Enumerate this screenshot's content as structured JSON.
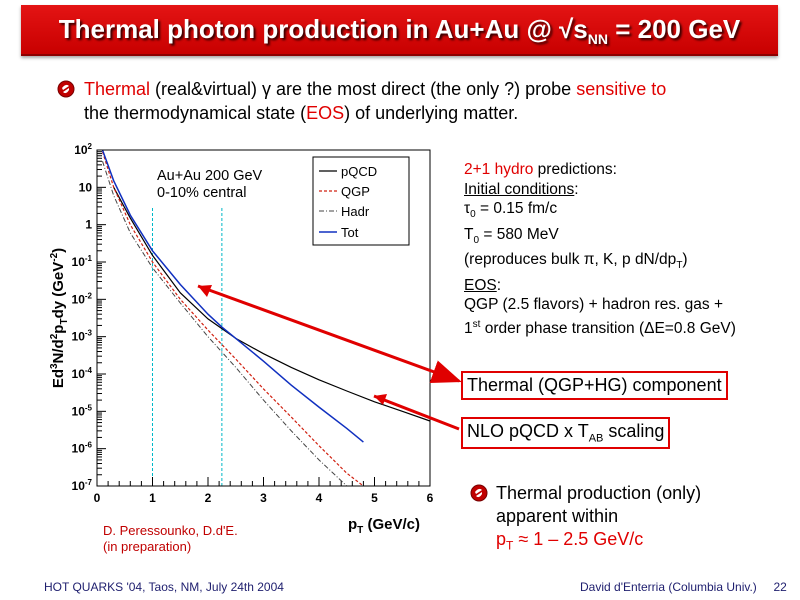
{
  "slide": {
    "title_main": "Thermal photon production in Au+Au @ √s",
    "title_sub": "NN",
    "title_end": " = 200 GeV",
    "intro_thermal": "Thermal",
    "intro_part1": " (real&virtual) γ are the most direct (the only ?) probe ",
    "intro_sensitive": "sensitive to",
    "intro_part2": "the thermodynamical state (",
    "intro_eos": "EOS",
    "intro_part3": ") of underlying matter.",
    "hydro_head_red": "2+1 hydro",
    "hydro_head_rest": " predictions:",
    "init_label": "Initial conditions",
    "tau_sym": "τ",
    "tau_sub": "0",
    "tau_val": " = 0.15 fm/c",
    "t_sym": "T",
    "t_sub": "0",
    "t_val": " = 580 MeV",
    "repro_text": "(reproduces bulk π, K, p dN/dp",
    "repro_sub": "T",
    "repro_end": ")",
    "eos_label": "EOS",
    "eos_line1": "QGP (2.5 flavors) + hadron res. gas +",
    "eos_line2a": "1",
    "eos_line2sup": "st",
    "eos_line2b": " order phase transition (ΔE=0.8 GeV)",
    "callout1": "Thermal (QGP+HG) component",
    "callout2_a": "NLO pQCD x T",
    "callout2_sub": "AB",
    "callout2_b": " scaling",
    "note_line1": "Thermal production (only)",
    "note_line2": "apparent within",
    "note_p": "p",
    "note_sub": "T",
    "note_rest": " ≈ 1 – 2.5 GeV/c",
    "credit_line1": "D. Peressounko, D.d'E.",
    "credit_line2": "(in preparation)",
    "footer_left": "HOT QUARKS '04, Taos, NM, July 24th 2004",
    "footer_author": "David d'Enterria (Columbia Univ.)",
    "footer_page": "22"
  },
  "colors": {
    "title_red": "#d40000",
    "accent_red": "#e00000",
    "tot_blue": "#1030c0",
    "qgp_red": "#d02010",
    "vline_cyan": "#00b8c8"
  },
  "chart_data": {
    "type": "line",
    "log_y": true,
    "xlim": [
      0,
      6
    ],
    "ylim": [
      1e-07,
      100
    ],
    "x_ticks": [
      "0",
      "1",
      "2",
      "3",
      "4",
      "5",
      "6"
    ],
    "y_ticks": [
      "10-7",
      "10-6",
      "10-5",
      "10-4",
      "10-3",
      "10-2",
      "10-1",
      "1",
      "10",
      "102"
    ],
    "xlabel": "pT (GeV/c)",
    "ylabel": "Ed3N/d2pTdy (GeV-2)",
    "annotation_line1": "Au+Au 200 GeV",
    "annotation_line2": "0-10% central",
    "vlines": [
      1.0,
      2.25
    ],
    "legend": [
      "pQCD",
      "QGP",
      "Hadr",
      "Tot"
    ],
    "series": [
      {
        "name": "pQCD",
        "x": [
          0.3,
          0.6,
          1.0,
          1.5,
          2.0,
          2.5,
          3.0,
          3.5,
          4.0,
          4.5,
          5.0,
          5.5,
          6.0
        ],
        "y": [
          10,
          1.5,
          0.15,
          0.015,
          0.003,
          0.0009,
          0.00035,
          0.00015,
          7e-05,
          3.5e-05,
          1.8e-05,
          1e-05,
          5.5e-06
        ]
      },
      {
        "name": "QGP",
        "x": [
          0.1,
          0.3,
          0.6,
          1.0,
          1.5,
          2.0,
          2.5,
          3.0,
          3.5,
          4.0,
          4.5,
          4.8
        ],
        "y": [
          90,
          10,
          1.0,
          0.1,
          0.01,
          0.0015,
          0.00025,
          4e-05,
          7e-06,
          1.2e-06,
          2.2e-07,
          1e-07
        ]
      },
      {
        "name": "Hadr",
        "x": [
          0.1,
          0.3,
          0.6,
          1.0,
          1.5,
          2.0,
          2.5,
          3.0,
          3.5,
          4.0,
          4.5
        ],
        "y": [
          50,
          6,
          0.6,
          0.07,
          0.008,
          0.001,
          0.00015,
          2e-05,
          3e-06,
          5e-07,
          1e-07
        ]
      },
      {
        "name": "Tot",
        "x": [
          0.1,
          0.3,
          0.6,
          1.0,
          1.5,
          2.0,
          2.25,
          2.5,
          3.0,
          3.5,
          4.0,
          4.5,
          4.8
        ],
        "y": [
          100,
          15,
          1.8,
          0.2,
          0.025,
          0.004,
          0.0018,
          0.0009,
          0.00022,
          5e-05,
          1.3e-05,
          3.5e-06,
          1.5e-06
        ]
      }
    ]
  }
}
